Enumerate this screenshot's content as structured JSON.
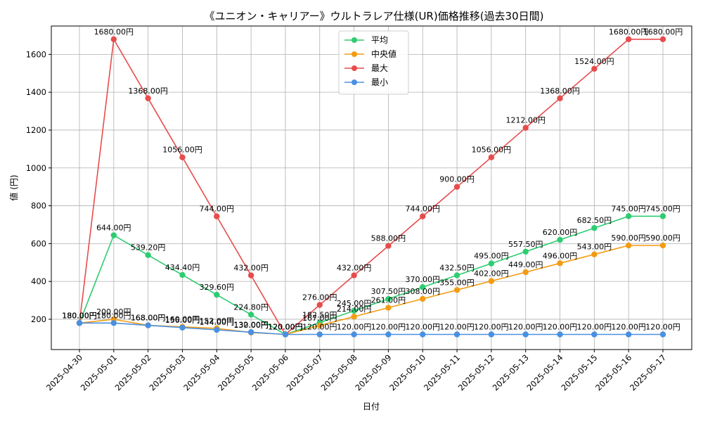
{
  "chart_data": {
    "type": "line",
    "title": "《ユニオン・キャリアー》ウルトラレア仕様(UR)価格推移(過去30日間)",
    "xlabel": "日付",
    "ylabel": "値 (円)",
    "x": [
      "2025-04-30",
      "2025-05-01",
      "2025-05-02",
      "2025-05-03",
      "2025-05-04",
      "2025-05-05",
      "2025-05-06",
      "2025-05-07",
      "2025-05-08",
      "2025-05-09",
      "2025-05-10",
      "2025-05-11",
      "2025-05-12",
      "2025-05-13",
      "2025-05-14",
      "2025-05-15",
      "2025-05-16",
      "2025-05-17"
    ],
    "ylim": [
      40,
      1750
    ],
    "yticks": [
      200,
      400,
      600,
      800,
      1000,
      1200,
      1400,
      1600
    ],
    "grid": true,
    "legend_position": "top-center",
    "value_suffix": "円",
    "series": [
      {
        "name": "平均",
        "color": "#2ecc71",
        "values": [
          180.0,
          644.0,
          539.2,
          434.4,
          329.6,
          224.8,
          120.0,
          182.5,
          245.0,
          307.5,
          370.0,
          432.5,
          495.0,
          557.5,
          620.0,
          682.5,
          745.0,
          745.0
        ]
      },
      {
        "name": "中央値",
        "color": "#f39c12",
        "values": [
          180.0,
          200.0,
          168.0,
          160.0,
          152.0,
          130.0,
          120.0,
          167.0,
          214.0,
          261.0,
          308.0,
          355.0,
          402.0,
          449.0,
          496.0,
          543.0,
          590.0,
          590.0
        ]
      },
      {
        "name": "最大",
        "color": "#e74c4c",
        "values": [
          180.0,
          1680.0,
          1368.0,
          1056.0,
          744.0,
          432.0,
          120.0,
          276.0,
          432.0,
          588.0,
          744.0,
          900.0,
          1056.0,
          1212.0,
          1368.0,
          1524.0,
          1680.0,
          1680.0
        ]
      },
      {
        "name": "最小",
        "color": "#4a90e2",
        "values": [
          180.0,
          180.0,
          168.0,
          156.0,
          144.0,
          132.0,
          120.0,
          120.0,
          120.0,
          120.0,
          120.0,
          120.0,
          120.0,
          120.0,
          120.0,
          120.0,
          120.0,
          120.0
        ]
      }
    ]
  }
}
